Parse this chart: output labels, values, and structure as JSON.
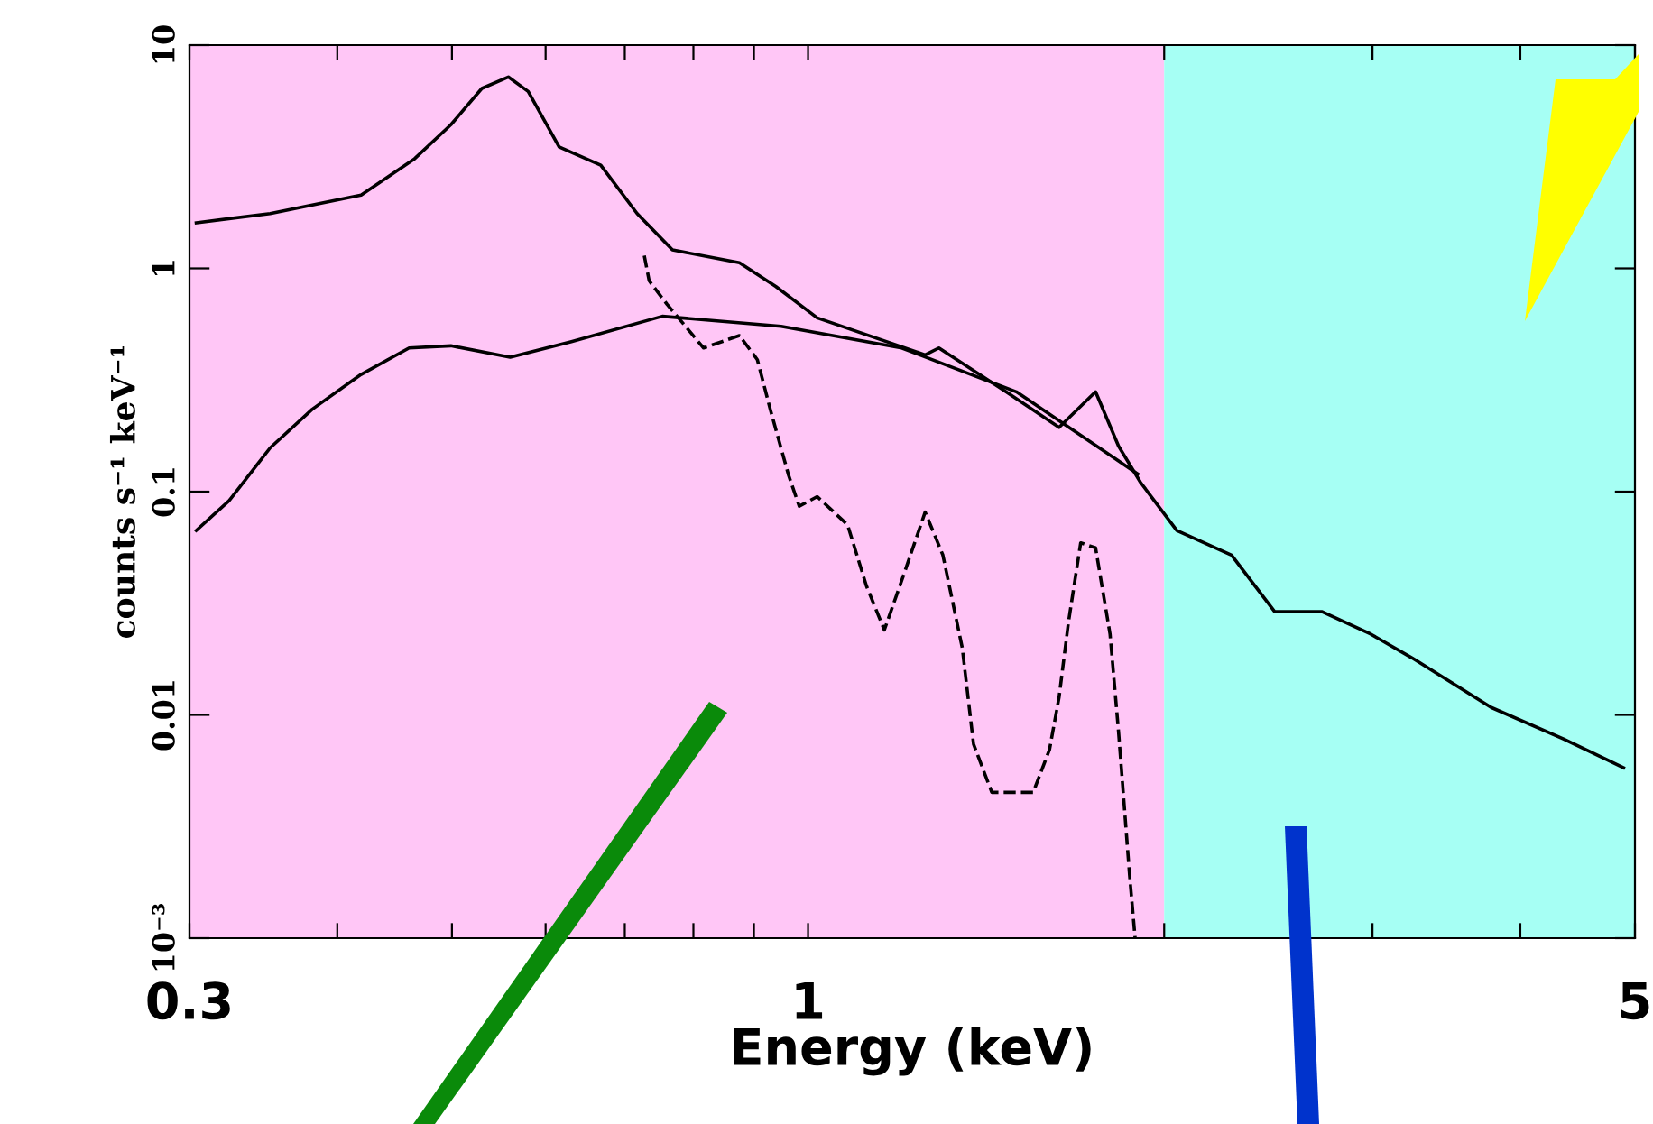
{
  "chart_data": {
    "type": "line",
    "xlabel": "Energy (keV)",
    "ylabel": "counts s⁻¹ keV⁻¹",
    "log": "xy",
    "grid": false,
    "marker": "none",
    "xlim": [
      0.3,
      5
    ],
    "ylim": [
      0.001,
      10
    ],
    "xticks": [
      0.3,
      {
        "value": 0.4,
        "label": null
      },
      {
        "value": 0.5,
        "label": null
      },
      {
        "value": 0.6,
        "label": null
      },
      {
        "value": 0.7,
        "label": null
      },
      {
        "value": 0.8,
        "label": null
      },
      {
        "value": 0.9,
        "label": null
      },
      1,
      {
        "value": 2,
        "label": null
      },
      {
        "value": 3,
        "label": null
      },
      {
        "value": 4,
        "label": null
      },
      5
    ],
    "yticks": [
      {
        "value": 0.001,
        "label": "10⁻³"
      },
      0.01,
      0.1,
      1,
      10
    ],
    "bands": [
      {
        "axis": "x",
        "from": 0.3,
        "to": 2.0,
        "color": "#ffc6f6"
      },
      {
        "axis": "x",
        "from": 2.0,
        "to": 5,
        "color": "#a6fff4"
      }
    ],
    "series": [
      {
        "color": "#000000",
        "line_style": "solid",
        "x": [
          0.304,
          0.351,
          0.419,
          0.465,
          0.499,
          0.53,
          0.558,
          0.58,
          0.616,
          0.668,
          0.717,
          0.768,
          0.875,
          0.939,
          1.018,
          1.256,
          1.29,
          1.47,
          1.63,
          1.75,
          1.83,
          1.91,
          2.05,
          2.28,
          2.48,
          2.72,
          2.99,
          3.24,
          3.78,
          4.35,
          4.89
        ],
        "values": [
          1.6,
          1.76,
          2.13,
          3.1,
          4.4,
          6.4,
          7.2,
          6.2,
          3.5,
          2.9,
          1.76,
          1.21,
          1.06,
          0.83,
          0.6,
          0.41,
          0.44,
          0.28,
          0.194,
          0.28,
          0.16,
          0.11,
          0.067,
          0.052,
          0.029,
          0.029,
          0.023,
          0.018,
          0.0108,
          0.0078,
          0.0058
        ]
      },
      {
        "color": "#000000",
        "line_style": "solid",
        "x": [
          0.304,
          0.324,
          0.351,
          0.381,
          0.419,
          0.46,
          0.499,
          0.56,
          0.631,
          0.753,
          0.949,
          1.2,
          1.5,
          1.9
        ],
        "values": [
          0.067,
          0.091,
          0.157,
          0.234,
          0.335,
          0.44,
          0.45,
          0.4,
          0.47,
          0.61,
          0.55,
          0.44,
          0.28,
          0.12
        ]
      },
      {
        "color": "#000000",
        "line_style": "dashed",
        "x": [
          0.727,
          0.734,
          0.76,
          0.816,
          0.875,
          0.906,
          0.929,
          0.963,
          0.983,
          1.018,
          1.08,
          1.12,
          1.16,
          1.2,
          1.256,
          1.3,
          1.35,
          1.38,
          1.43,
          1.55,
          1.6,
          1.63,
          1.66,
          1.7,
          1.75,
          1.8,
          1.83,
          1.87,
          1.89
        ],
        "values": [
          1.14,
          0.88,
          0.69,
          0.44,
          0.5,
          0.39,
          0.234,
          0.118,
          0.086,
          0.095,
          0.071,
          0.038,
          0.024,
          0.04,
          0.081,
          0.052,
          0.02,
          0.0074,
          0.0045,
          0.0045,
          0.007,
          0.012,
          0.026,
          0.059,
          0.056,
          0.023,
          0.0084,
          0.0019,
          0.001
        ]
      }
    ]
  }
}
